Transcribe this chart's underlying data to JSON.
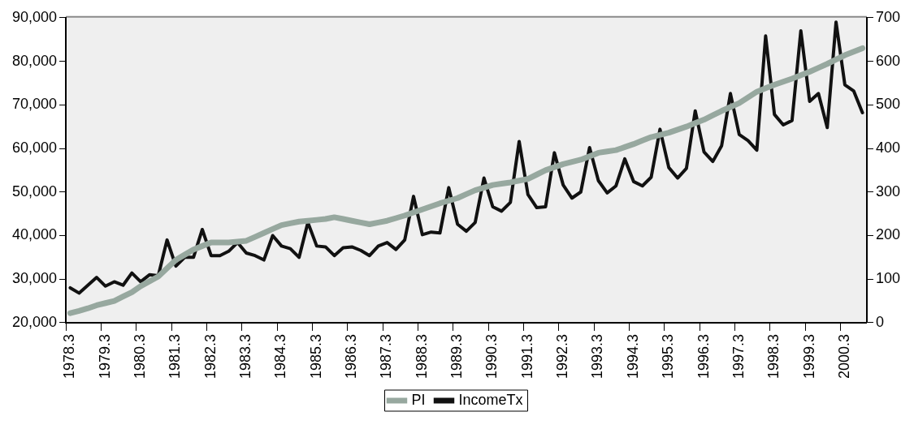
{
  "chart_data": {
    "type": "line",
    "categories": [
      "1978.3",
      null,
      null,
      null,
      "1979.3",
      null,
      null,
      null,
      "1980.3",
      null,
      null,
      null,
      "1981.3",
      null,
      null,
      null,
      "1982.3",
      null,
      null,
      null,
      "1983.3",
      null,
      null,
      null,
      "1984.3",
      null,
      null,
      null,
      "1985.3",
      null,
      null,
      null,
      "1986.3",
      null,
      null,
      null,
      "1987.3",
      null,
      null,
      null,
      "1988.3",
      null,
      null,
      null,
      "1989.3",
      null,
      null,
      null,
      "1990.3",
      null,
      null,
      null,
      "1991.3",
      null,
      null,
      null,
      "1992.3",
      null,
      null,
      null,
      "1993.3",
      null,
      null,
      null,
      "1994.3",
      null,
      null,
      null,
      "1995.3",
      null,
      null,
      null,
      "1996.3",
      null,
      null,
      null,
      "1997.3",
      null,
      null,
      null,
      "1998.3",
      null,
      null,
      null,
      "1999.3",
      null,
      null,
      null,
      "2000.3",
      null,
      null
    ],
    "series": [
      {
        "name": "PI",
        "color": "#97a89f",
        "values": [
          22200,
          22700,
          23300,
          24000,
          24500,
          25000,
          26000,
          27000,
          28400,
          29500,
          30600,
          32500,
          34400,
          35600,
          36800,
          37600,
          38400,
          38400,
          38400,
          38600,
          38800,
          39700,
          40600,
          41500,
          42400,
          42800,
          43200,
          43400,
          43600,
          43800,
          44200,
          43800,
          43400,
          43000,
          42600,
          43000,
          43400,
          44000,
          44600,
          45300,
          46000,
          46700,
          47400,
          48000,
          48600,
          49500,
          50400,
          51000,
          51600,
          51900,
          52200,
          52600,
          53000,
          54000,
          55000,
          55700,
          56400,
          56900,
          57400,
          58200,
          59000,
          59300,
          59600,
          60300,
          61000,
          61800,
          62600,
          63100,
          63600,
          64300,
          65000,
          65800,
          66600,
          67600,
          68600,
          69500,
          70400,
          71700,
          73000,
          73800,
          74600,
          75300,
          76000,
          76800,
          77600,
          78500,
          79400,
          80400,
          81400,
          82200,
          83000
        ]
      },
      {
        "name": "IncomeTx",
        "color": "#111111",
        "axis": "y2",
        "values": [
          80,
          68,
          86,
          104,
          84,
          94,
          86,
          114,
          94,
          110,
          108,
          190,
          130,
          150,
          150,
          214,
          154,
          154,
          164,
          184,
          160,
          154,
          144,
          200,
          176,
          170,
          150,
          230,
          176,
          174,
          154,
          172,
          174,
          166,
          154,
          176,
          184,
          168,
          190,
          290,
          202,
          208,
          206,
          310,
          226,
          210,
          230,
          332,
          266,
          256,
          276,
          416,
          294,
          264,
          266,
          390,
          316,
          286,
          300,
          402,
          326,
          298,
          314,
          376,
          324,
          314,
          334,
          444,
          356,
          332,
          354,
          486,
          392,
          370,
          406,
          526,
          432,
          418,
          396,
          658,
          478,
          454,
          464,
          670,
          508,
          526,
          448,
          690,
          546,
          532,
          482
        ]
      }
    ],
    "ylim": [
      20000,
      90000
    ],
    "yticks": [
      {
        "value": 20000,
        "label": "20,000"
      },
      {
        "value": 30000,
        "label": "30,000"
      },
      {
        "value": 40000,
        "label": "40,000"
      },
      {
        "value": 50000,
        "label": "50,000"
      },
      {
        "value": 60000,
        "label": "60,000"
      },
      {
        "value": 70000,
        "label": "70,000"
      },
      {
        "value": 80000,
        "label": "80,000"
      },
      {
        "value": 90000,
        "label": "90,000"
      }
    ],
    "y2lim": [
      0,
      700
    ],
    "y2ticks": [
      0,
      100,
      200,
      300,
      400,
      500,
      600,
      700
    ],
    "legend": "bottom",
    "marker": "none",
    "line_style": "solid"
  }
}
